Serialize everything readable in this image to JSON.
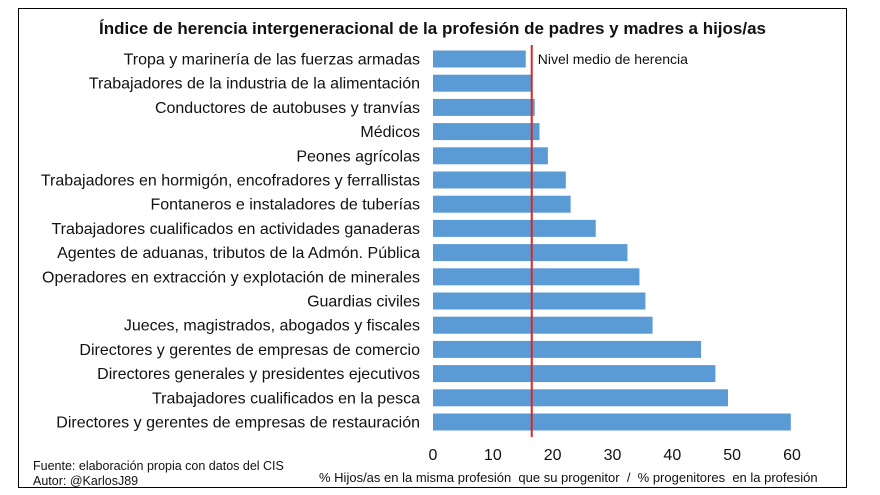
{
  "chart_data": {
    "type": "bar",
    "orientation": "horizontal",
    "title": "Índice de herencia intergeneracional de la profesión de padres y madres a hijos/as",
    "categories": [
      "Tropa y marinería de las fuerzas armadas",
      "Trabajadores de la industria de la alimentación",
      "Conductores de autobuses y tranvías",
      "Médicos",
      "Peones agrícolas",
      "Trabajadores en hormigón, encofradores y ferrallistas",
      "Fontaneros e instaladores de tuberías",
      "Trabajadores cualificados en actividades ganaderas",
      "Agentes de aduanas, tributos de la Admón. Pública",
      "Operadores en extracción y explotación de minerales",
      "Guardias civiles",
      "Jueces, magistrados, abogados y fiscales",
      "Directores y gerentes de empresas de comercio",
      "Directores generales y presidentes ejecutivos",
      "Trabajadores cualificados en la pesca",
      "Directores y gerentes de empresas de restauración"
    ],
    "values": [
      15.5,
      16.5,
      17,
      17.8,
      19.2,
      22.2,
      23,
      27.2,
      32.5,
      34.5,
      35.5,
      36.7,
      44.8,
      47.2,
      49.3,
      59.8
    ],
    "reference_line": {
      "value": 16.5,
      "label": "Nivel medio de herencia",
      "color": "#d62828"
    },
    "xlim": [
      0,
      60
    ],
    "xticks": [
      "0",
      "10",
      "20",
      "30",
      "40",
      "50",
      "60"
    ],
    "xlabel": "% Hijos/as en la misma profesión  que su progenitor  /  % progenitores  en la profesión",
    "bar_color": "#5b9bd5",
    "grid": false,
    "legend": "none"
  },
  "footer": {
    "source": "Fuente: elaboración propia con datos del CIS",
    "author": "Autor: @KarlosJ89"
  }
}
